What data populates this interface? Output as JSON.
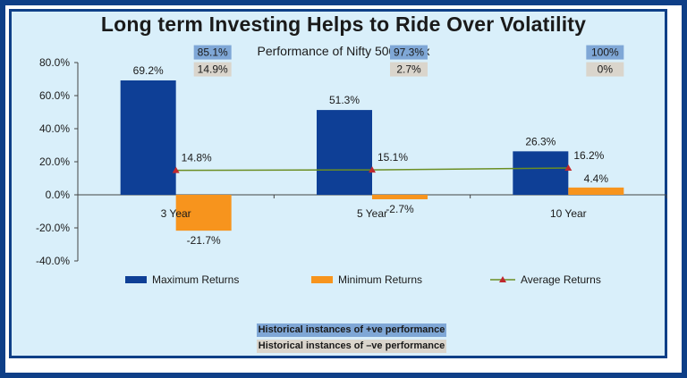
{
  "chart_data": {
    "type": "bar",
    "title": "Long term Investing Helps to Ride Over Volatility",
    "subtitle": "Performance of Nifty 500 Index",
    "categories": [
      "3 Year",
      "5 Year",
      "10 Year"
    ],
    "ylim": [
      -40,
      80
    ],
    "yticks": [
      80,
      60,
      40,
      20,
      0,
      -20,
      -40
    ],
    "ytick_labels": [
      "80.0%",
      "60.0%",
      "40.0%",
      "20.0%",
      "0.0%",
      "-20.0%",
      "-40.0%"
    ],
    "series": [
      {
        "name": "Maximum Returns",
        "type": "bar",
        "color": "#0e3f96",
        "values": [
          69.2,
          51.3,
          26.3
        ],
        "labels": [
          "69.2%",
          "51.3%",
          "26.3%"
        ]
      },
      {
        "name": "Minimum Returns",
        "type": "bar",
        "color": "#f7941d",
        "values": [
          -21.7,
          -2.7,
          4.4
        ],
        "labels": [
          "-21.7%",
          "-2.7%",
          "4.4%"
        ]
      },
      {
        "name": "Average Returns",
        "type": "line",
        "color": "#6b8e23",
        "marker_color": "#c0282d",
        "values": [
          14.8,
          15.1,
          16.2
        ],
        "labels": [
          "14.8%",
          "15.1%",
          "16.2%"
        ]
      }
    ],
    "positive_instances": [
      "85.1%",
      "97.3%",
      "100%"
    ],
    "negative_instances": [
      "14.9%",
      "2.7%",
      "0%"
    ],
    "positive_color": "#7fa7d6",
    "negative_color": "#dad5cc",
    "grid": false,
    "legend_position": "bottom"
  },
  "notes": {
    "positive": "Historical instances of +ve performance",
    "negative": "Historical instances of –ve performance"
  }
}
